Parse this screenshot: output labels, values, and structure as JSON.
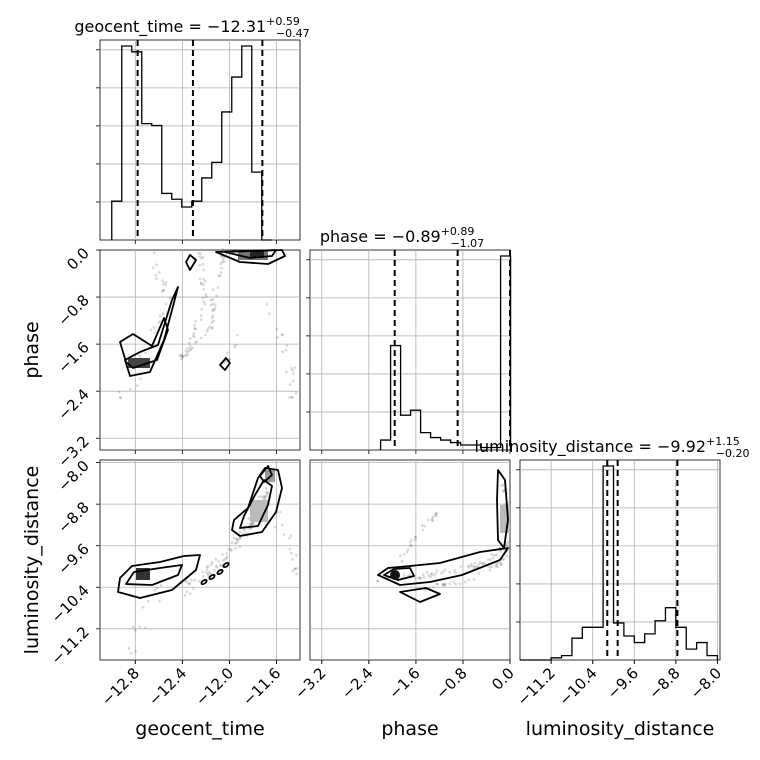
{
  "chart_data": {
    "type": "corner",
    "parameters": [
      {
        "name": "geocent_time",
        "median": "−12.31",
        "plus": "+0.59",
        "minus": "−0.47",
        "range": [
          -13.1,
          -11.4
        ],
        "quantiles": [
          -12.78,
          -12.31,
          -11.72
        ],
        "ticks": [
          -12.8,
          -12.4,
          -12.0,
          -11.6
        ],
        "tick_labels": [
          "−12.8",
          "−12.4",
          "−12.0",
          "−11.6"
        ],
        "hist_edges_from": -13.0,
        "hist_bin_width": 0.085,
        "hist_counts": [
          0.2,
          1.0,
          0.97,
          0.6,
          0.59,
          0.24,
          0.21,
          0.17,
          0.2,
          0.32,
          0.4,
          0.66,
          0.84,
          1.0,
          0.35,
          0.0
        ]
      },
      {
        "name": "phase",
        "median": "−0.89",
        "plus": "+0.89",
        "minus": "−1.07",
        "range": [
          -3.4,
          0.0
        ],
        "quantiles": [
          -1.96,
          -0.89,
          0.0
        ],
        "ticks": [
          -3.2,
          -2.4,
          -1.6,
          -0.8,
          0.0
        ],
        "tick_labels": [
          "−3.2",
          "−2.4",
          "−1.6",
          "−0.8",
          "0.0"
        ],
        "hist_edges_from": -2.2,
        "hist_bin_width": 0.17,
        "hist_counts": [
          0.04,
          0.42,
          0.14,
          0.16,
          0.07,
          0.05,
          0.04,
          0.03,
          0.02,
          0.02,
          0.01,
          0.01,
          0.78
        ]
      },
      {
        "name": "luminosity_distance",
        "median": "−9.92",
        "plus": "+1.15",
        "minus": "−0.20",
        "range": [
          -11.8,
          -7.95
        ],
        "quantiles": [
          -10.12,
          -9.92,
          -8.77
        ],
        "ticks": [
          -11.2,
          -10.4,
          -9.6,
          -8.8,
          -8.0
        ],
        "tick_labels": [
          "−11.2",
          "−10.4",
          "−9.6",
          "−8.8",
          "−8.0"
        ],
        "hist_edges_from": -11.8,
        "hist_bin_width": 0.2,
        "hist_counts": [
          0.0,
          0.0,
          0.0,
          0.01,
          0.02,
          0.1,
          0.15,
          0.15,
          0.89,
          0.17,
          0.11,
          0.08,
          0.12,
          0.18,
          0.24,
          0.15,
          0.05,
          0.08,
          0.02
        ]
      }
    ],
    "title_prefix_sep": " = "
  }
}
